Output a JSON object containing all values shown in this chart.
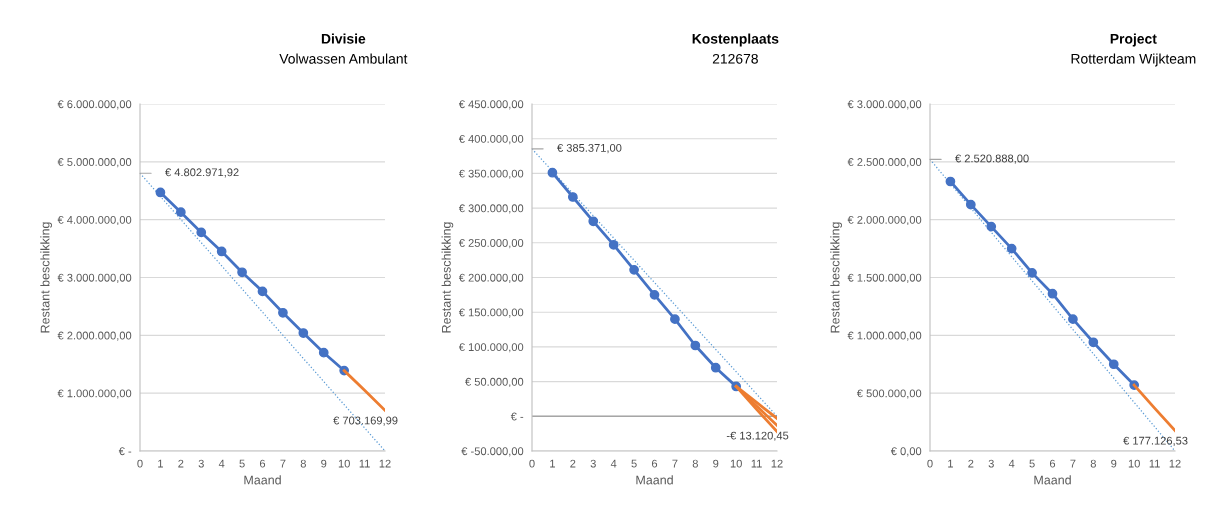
{
  "chart_data": [
    {
      "type": "line",
      "title": "Divisie",
      "subtitle": "Volwassen Ambulant",
      "xlabel": "Maand",
      "ylabel": "Restant beschikking",
      "series": [
        {
          "color": "#4472c4",
          "marker": "circle",
          "line_style": "solid",
          "x": [
            1,
            2,
            3,
            4,
            5,
            6,
            7,
            8,
            9,
            10
          ],
          "values": [
            4470000,
            4130000,
            3780000,
            3450000,
            3090000,
            2760000,
            2390000,
            2040000,
            1700000,
            1390000
          ]
        },
        {
          "color": "#ed7d31",
          "line_style": "solid",
          "x": [
            10,
            11,
            12
          ],
          "values": [
            1390000,
            1050000,
            703169.99
          ],
          "value_labels": [
            null,
            null,
            "€ 703.169,99"
          ]
        },
        {
          "color": "#5b9bd5",
          "line_style": "dotted",
          "x": [
            0,
            12
          ],
          "values": [
            4802971.92,
            0
          ],
          "value_labels": [
            "€ 4.802.971,92",
            null
          ]
        }
      ],
      "xlim": [
        0,
        12
      ],
      "xticks": [
        0,
        1,
        2,
        3,
        4,
        5,
        6,
        7,
        8,
        9,
        10,
        11,
        12
      ],
      "ylim": [
        0,
        6000000
      ],
      "yticks": [
        {
          "value": 0,
          "label": "€ -"
        },
        {
          "value": 1000000,
          "label": "€ 1.000.000,00"
        },
        {
          "value": 2000000,
          "label": "€ 2.000.000,00"
        },
        {
          "value": 3000000,
          "label": "€ 3.000.000,00"
        },
        {
          "value": 4000000,
          "label": "€ 4.000.000,00"
        },
        {
          "value": 5000000,
          "label": "€ 5.000.000,00"
        },
        {
          "value": 6000000,
          "label": "€ 6.000.000,00"
        }
      ],
      "grid": "y"
    },
    {
      "type": "line",
      "title": "Kostenplaats",
      "subtitle": "212678",
      "xlabel": "Maand",
      "ylabel": "Restant beschikking",
      "series": [
        {
          "color": "#4472c4",
          "marker": "circle",
          "line_style": "solid",
          "x": [
            1,
            2,
            3,
            4,
            5,
            6,
            7,
            8,
            9,
            10
          ],
          "values": [
            351000,
            316000,
            281000,
            247000,
            211000,
            175000,
            140000,
            102000,
            70000,
            43000
          ]
        },
        {
          "color": "#ed7d31",
          "line_style": "solid",
          "x": [
            10,
            11,
            12
          ],
          "values": [
            43000,
            20000,
            -3000
          ]
        },
        {
          "color": "#ed7d31",
          "line_style": "solid",
          "x": [
            10,
            11,
            12
          ],
          "values": [
            43000,
            15000,
            -13120.45
          ],
          "value_labels": [
            null,
            null,
            "-€ 13.120,45"
          ]
        },
        {
          "color": "#ed7d31",
          "line_style": "solid",
          "x": [
            10,
            11,
            12
          ],
          "values": [
            43000,
            10000,
            -22000
          ]
        },
        {
          "color": "#5b9bd5",
          "line_style": "dotted",
          "x": [
            0,
            12
          ],
          "values": [
            385371,
            0
          ],
          "value_labels": [
            "€ 385.371,00",
            null
          ]
        }
      ],
      "xlim": [
        0,
        12
      ],
      "xticks": [
        0,
        1,
        2,
        3,
        4,
        5,
        6,
        7,
        8,
        9,
        10,
        11,
        12
      ],
      "ylim": [
        -50000,
        450000
      ],
      "yticks": [
        {
          "value": -50000,
          "label": "€ -50.000,00"
        },
        {
          "value": 0,
          "label": "€ -"
        },
        {
          "value": 50000,
          "label": "€ 50.000,00"
        },
        {
          "value": 100000,
          "label": "€ 100.000,00"
        },
        {
          "value": 150000,
          "label": "€ 150.000,00"
        },
        {
          "value": 200000,
          "label": "€ 200.000,00"
        },
        {
          "value": 250000,
          "label": "€ 250.000,00"
        },
        {
          "value": 300000,
          "label": "€ 300.000,00"
        },
        {
          "value": 350000,
          "label": "€ 350.000,00"
        },
        {
          "value": 400000,
          "label": "€ 400.000,00"
        },
        {
          "value": 450000,
          "label": "€ 450.000,00"
        }
      ],
      "grid": "y",
      "ref_lines": [
        {
          "axis": "y",
          "value": 0,
          "color": "#a6a6a6"
        }
      ]
    },
    {
      "type": "line",
      "title": "Project",
      "subtitle": "Rotterdam Wijkteam",
      "xlabel": "Maand",
      "ylabel": "Restant beschikking",
      "series": [
        {
          "color": "#4472c4",
          "marker": "circle",
          "line_style": "solid",
          "x": [
            1,
            2,
            3,
            4,
            5,
            6,
            7,
            8,
            9,
            10
          ],
          "values": [
            2330000,
            2130000,
            1940000,
            1750000,
            1540000,
            1360000,
            1140000,
            940000,
            750000,
            570000
          ]
        },
        {
          "color": "#ed7d31",
          "line_style": "solid",
          "x": [
            10,
            11,
            12
          ],
          "values": [
            570000,
            370000,
            177126.53
          ],
          "value_labels": [
            null,
            null,
            "€ 177.126,53"
          ]
        },
        {
          "color": "#5b9bd5",
          "line_style": "dotted",
          "x": [
            0,
            12
          ],
          "values": [
            2520888,
            0
          ],
          "value_labels": [
            "€ 2.520.888,00",
            null
          ]
        }
      ],
      "xlim": [
        0,
        12
      ],
      "xticks": [
        0,
        1,
        2,
        3,
        4,
        5,
        6,
        7,
        8,
        9,
        10,
        11,
        12
      ],
      "ylim": [
        0,
        3000000
      ],
      "yticks": [
        {
          "value": 0,
          "label": "€ 0,00"
        },
        {
          "value": 500000,
          "label": "€ 500.000,00"
        },
        {
          "value": 1000000,
          "label": "€ 1.000.000,00"
        },
        {
          "value": 1500000,
          "label": "€ 1.500.000,00"
        },
        {
          "value": 2000000,
          "label": "€ 2.000.000,00"
        },
        {
          "value": 2500000,
          "label": "€ 2.500.000,00"
        },
        {
          "value": 3000000,
          "label": "€ 3.000.000,00"
        }
      ],
      "grid": "y"
    }
  ]
}
